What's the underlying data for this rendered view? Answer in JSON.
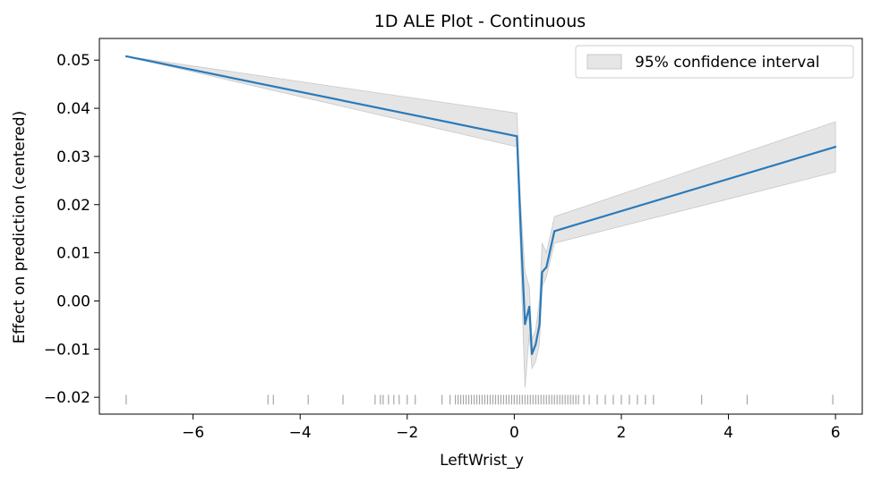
{
  "chart_data": {
    "type": "line",
    "title": "1D ALE Plot - Continuous",
    "xlabel": "LeftWrist_y",
    "ylabel": "Effect on prediction (centered)",
    "xlim": [
      -7.75,
      6.5
    ],
    "ylim": [
      -0.0235,
      0.0545
    ],
    "x_ticks": [
      -6,
      -4,
      -2,
      0,
      2,
      4,
      6
    ],
    "x_tick_labels": [
      "−6",
      "−4",
      "−2",
      "0",
      "2",
      "4",
      "6"
    ],
    "y_ticks": [
      -0.02,
      -0.01,
      0.0,
      0.01,
      0.02,
      0.03,
      0.04,
      0.05
    ],
    "y_tick_labels": [
      "−0.02",
      "−0.01",
      "0.00",
      "0.01",
      "0.02",
      "0.03",
      "0.04",
      "0.05"
    ],
    "grid": false,
    "legend": {
      "position": "top-right",
      "entries": [
        "95% confidence interval"
      ]
    },
    "colors": {
      "line": "#2a7ab9",
      "band": "#d9d9d9",
      "rug": "#000000"
    },
    "series": [
      {
        "x": [
          -7.25,
          0.05,
          0.12,
          0.2,
          0.28,
          0.33,
          0.4,
          0.47,
          0.52,
          0.6,
          0.75,
          6.0
        ],
        "y": [
          0.0508,
          0.0342,
          0.015,
          -0.0048,
          -0.0012,
          -0.011,
          -0.009,
          -0.005,
          0.006,
          0.007,
          0.0145,
          0.032
        ],
        "ci_lower": [
          0.0508,
          0.032,
          0.009,
          -0.018,
          -0.007,
          -0.014,
          -0.0125,
          -0.009,
          0.003,
          0.005,
          0.012,
          0.0268
        ],
        "ci_upper": [
          0.0508,
          0.039,
          0.02,
          0.006,
          0.003,
          -0.008,
          -0.006,
          0.0,
          0.012,
          0.01,
          0.0175,
          0.0372
        ]
      }
    ],
    "rug_x": [
      -7.25,
      -4.6,
      -4.5,
      -3.85,
      -3.2,
      -2.6,
      -2.5,
      -2.45,
      -2.35,
      -2.25,
      -2.15,
      -2.0,
      -1.85,
      -1.35,
      -1.2,
      -1.1,
      -1.05,
      -1.0,
      -0.95,
      -0.9,
      -0.85,
      -0.8,
      -0.75,
      -0.7,
      -0.65,
      -0.6,
      -0.55,
      -0.5,
      -0.45,
      -0.4,
      -0.35,
      -0.3,
      -0.25,
      -0.2,
      -0.15,
      -0.1,
      -0.05,
      0.0,
      0.05,
      0.1,
      0.15,
      0.2,
      0.25,
      0.3,
      0.35,
      0.4,
      0.45,
      0.5,
      0.55,
      0.6,
      0.65,
      0.7,
      0.75,
      0.8,
      0.85,
      0.9,
      0.95,
      1.0,
      1.05,
      1.1,
      1.15,
      1.2,
      1.3,
      1.4,
      1.55,
      1.7,
      1.85,
      2.0,
      2.15,
      2.3,
      2.45,
      2.6,
      3.5,
      4.35,
      5.95
    ]
  }
}
